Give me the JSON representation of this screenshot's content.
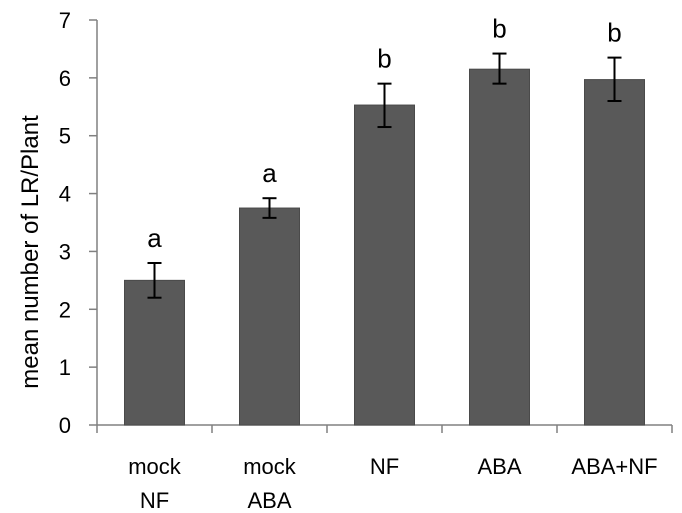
{
  "chart_data": {
    "type": "bar",
    "title": "",
    "xlabel": "",
    "ylabel": "mean number of LR/Plant",
    "ylim": [
      0,
      7
    ],
    "yticks": [
      0,
      1,
      2,
      3,
      4,
      5,
      6,
      7
    ],
    "grid": false,
    "legend": "none",
    "categories": [
      [
        "mock",
        "NF"
      ],
      [
        "mock",
        "ABA"
      ],
      [
        "NF"
      ],
      [
        "ABA"
      ],
      [
        "ABA+NF"
      ]
    ],
    "values": [
      2.5,
      3.75,
      5.53,
      6.15,
      5.97
    ],
    "error_low": [
      2.2,
      3.58,
      5.15,
      5.9,
      5.6
    ],
    "error_high": [
      2.8,
      3.92,
      5.9,
      6.42,
      6.35
    ],
    "significance": [
      "a",
      "a",
      "b",
      "b",
      "b"
    ],
    "colors": {
      "bar": "#595959",
      "bar_edge": "#4a4a4a",
      "axis": "#808080",
      "error": "#000000"
    }
  }
}
